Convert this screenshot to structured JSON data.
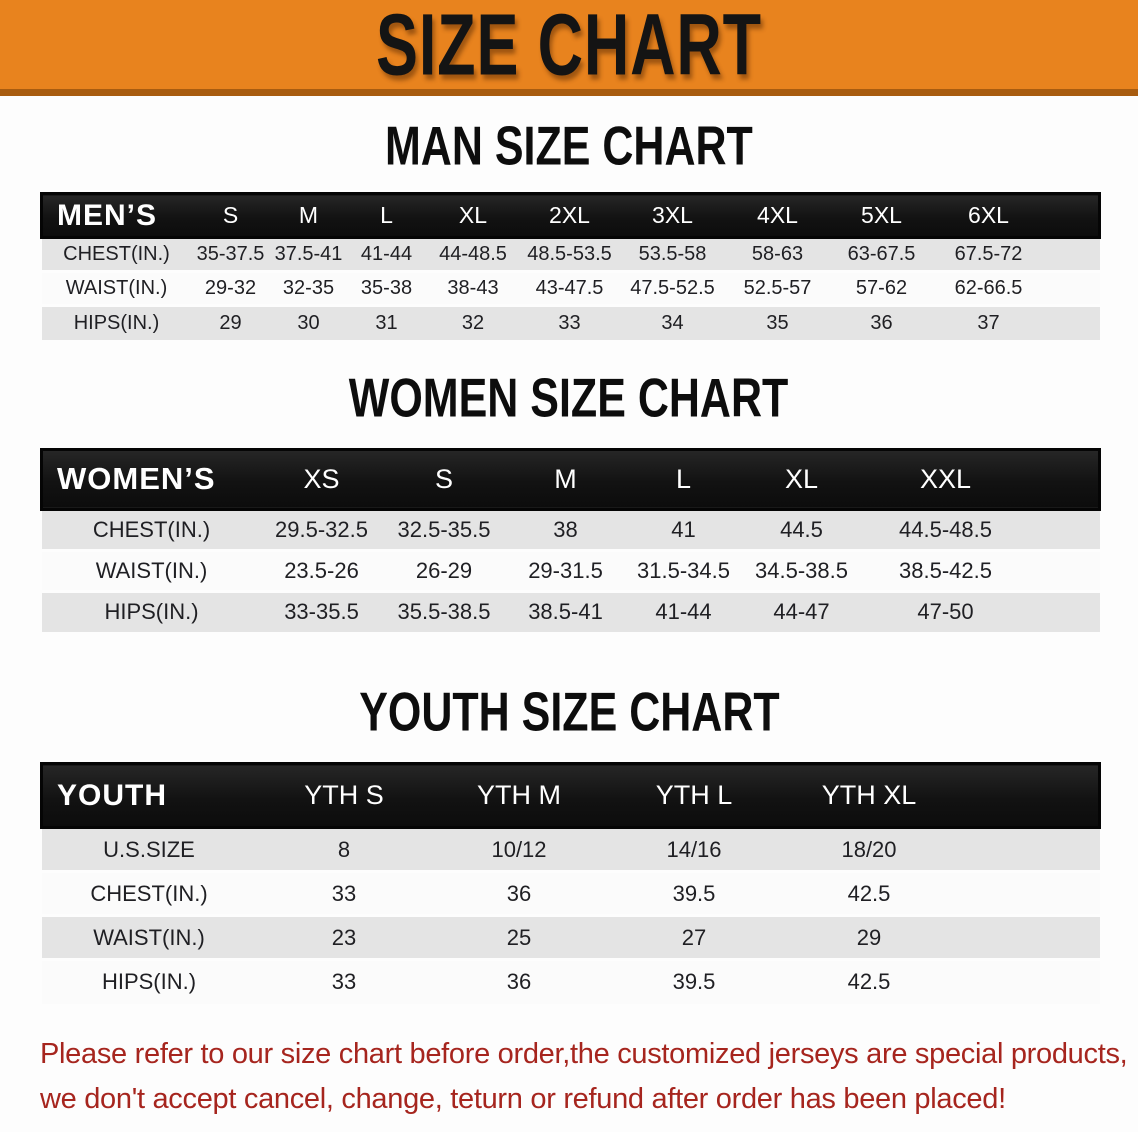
{
  "banner": {
    "title": "SIZE CHART",
    "bg_color": "#e8831e",
    "edge_color": "#a85c10",
    "text_color": "#141414"
  },
  "sections": [
    {
      "id": "men",
      "title": "MAN SIZE CHART",
      "group_label": "MEN’S",
      "columns": [
        "S",
        "M",
        "L",
        "XL",
        "2XL",
        "3XL",
        "4XL",
        "5XL",
        "6XL"
      ],
      "rows": [
        {
          "label": "CHEST(IN.)",
          "values": [
            "35-37.5",
            "37.5-41",
            "41-44",
            "44-48.5",
            "48.5-53.5",
            "53.5-58",
            "58-63",
            "63-67.5",
            "67.5-72"
          ]
        },
        {
          "label": "WAIST(IN.)",
          "values": [
            "29-32",
            "32-35",
            "35-38",
            "38-43",
            "43-47.5",
            "47.5-52.5",
            "52.5-57",
            "57-62",
            "62-66.5"
          ]
        },
        {
          "label": "HIPS(IN.)",
          "values": [
            "29",
            "30",
            "31",
            "32",
            "33",
            "34",
            "35",
            "36",
            "37"
          ]
        }
      ]
    },
    {
      "id": "women",
      "title": "WOMEN SIZE CHART",
      "group_label": "WOMEN’S",
      "columns": [
        "XS",
        "S",
        "M",
        "L",
        "XL",
        "XXL"
      ],
      "rows": [
        {
          "label": "CHEST(IN.)",
          "values": [
            "29.5-32.5",
            "32.5-35.5",
            "38",
            "41",
            "44.5",
            "44.5-48.5"
          ]
        },
        {
          "label": "WAIST(IN.)",
          "values": [
            "23.5-26",
            "26-29",
            "29-31.5",
            "31.5-34.5",
            "34.5-38.5",
            "38.5-42.5"
          ]
        },
        {
          "label": "HIPS(IN.)",
          "values": [
            "33-35.5",
            "35.5-38.5",
            "38.5-41",
            "41-44",
            "44-47",
            "47-50"
          ]
        }
      ]
    },
    {
      "id": "youth",
      "title": "YOUTH SIZE CHART",
      "group_label": "YOUTH",
      "columns": [
        "YTH S",
        "YTH M",
        "YTH L",
        "YTH XL"
      ],
      "rows": [
        {
          "label": "U.S.SIZE",
          "values": [
            "8",
            "10/12",
            "14/16",
            "18/20"
          ]
        },
        {
          "label": "CHEST(IN.)",
          "values": [
            "33",
            "36",
            "39.5",
            "42.5"
          ]
        },
        {
          "label": "WAIST(IN.)",
          "values": [
            "23",
            "25",
            "27",
            "29"
          ]
        },
        {
          "label": "HIPS(IN.)",
          "values": [
            "33",
            "36",
            "39.5",
            "42.5"
          ]
        }
      ]
    }
  ],
  "disclaimer": {
    "color": "#a6251e",
    "lines": [
      "Please refer to our size chart before order,the customized jerseys are special products,",
      "we don't accept cancel, change, teturn or refund after order has been placed!"
    ]
  }
}
